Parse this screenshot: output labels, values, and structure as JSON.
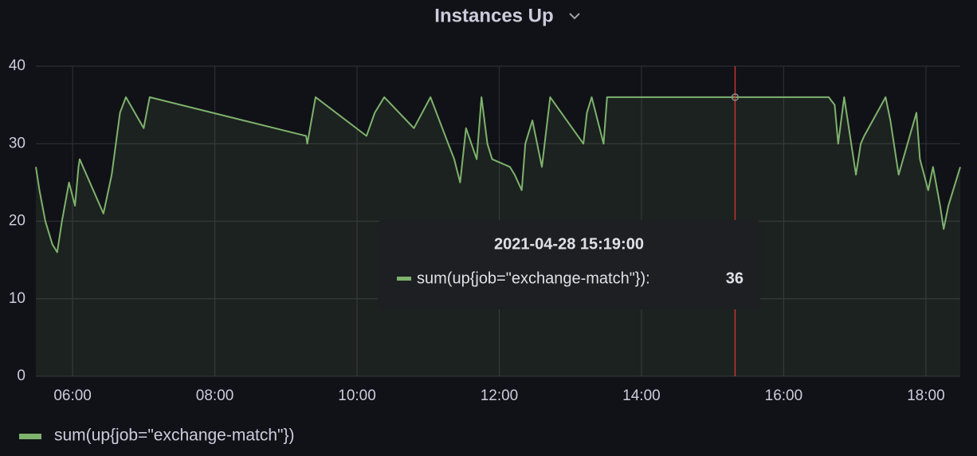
{
  "chart_data": {
    "type": "line",
    "title": "Instances Up",
    "x": [
      "05:29",
      "05:32",
      "05:37",
      "05:43",
      "05:47",
      "05:51",
      "05:57",
      "06:02",
      "06:05",
      "06:06",
      "06:26",
      "06:33",
      "06:40",
      "06:45",
      "07:00",
      "07:05",
      "09:17",
      "09:18",
      "09:25",
      "10:08",
      "10:15",
      "10:23",
      "10:48",
      "11:02",
      "11:17",
      "11:22",
      "11:27",
      "11:32",
      "11:41",
      "11:45",
      "11:50",
      "11:54",
      "12:09",
      "12:13",
      "12:19",
      "12:22",
      "12:28",
      "12:36",
      "12:43",
      "13:11",
      "13:14",
      "13:18",
      "13:28",
      "13:31",
      "16:38",
      "16:43",
      "16:46",
      "16:51",
      "17:01",
      "17:05",
      "17:08",
      "17:26",
      "17:30",
      "17:35",
      "17:37",
      "17:52",
      "17:55",
      "18:02",
      "18:06",
      "18:12",
      "18:15",
      "18:19",
      "18:29"
    ],
    "series": [
      {
        "name": "sum(up{job=\"exchange-match\"})",
        "color": "#7eb26d",
        "values": [
          27,
          24,
          20,
          17,
          16,
          20,
          25,
          22,
          27,
          28,
          21,
          26,
          34,
          36,
          32,
          36,
          31,
          30,
          36,
          31,
          34,
          36,
          32,
          36,
          30,
          28,
          25,
          32,
          28,
          36,
          30,
          28,
          27,
          26,
          24,
          30,
          33,
          27,
          36,
          30,
          34,
          36,
          30,
          36,
          36,
          35,
          30,
          36,
          26,
          30,
          31,
          36,
          33,
          28,
          26,
          34,
          28,
          24,
          27,
          22,
          19,
          22,
          27
        ]
      }
    ],
    "xlim": [
      "05:29",
      "18:29"
    ],
    "xticks": [
      "06:00",
      "08:00",
      "10:00",
      "12:00",
      "14:00",
      "16:00",
      "18:00"
    ],
    "ylim": [
      0,
      40
    ],
    "yticks": [
      0,
      10,
      20,
      30,
      40
    ],
    "grid": true,
    "tooltip": {
      "time": "2021-04-28 15:19:00",
      "label": "sum(up{job=\"exchange-match\"}):",
      "value": 36
    }
  }
}
